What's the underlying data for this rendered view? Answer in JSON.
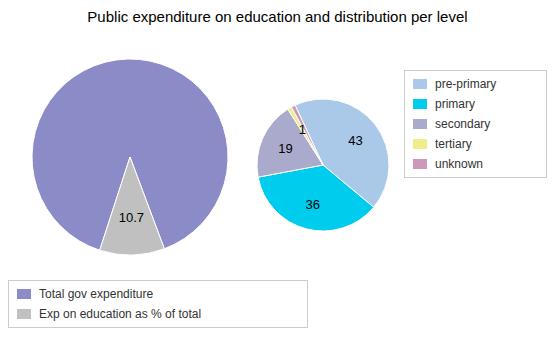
{
  "chart_data": [
    {
      "type": "pie",
      "title": "Public expenditure on education and distribution per level",
      "categories": [
        "Total gov expenditure",
        "Exp on education as % of total"
      ],
      "values": [
        89.3,
        10.7
      ],
      "value_labels": [
        null,
        "10.7"
      ],
      "colors": [
        "#8B8BC8",
        "#C0C0C0"
      ],
      "legend": "bottom"
    },
    {
      "type": "pie",
      "categories": [
        "pre-primary",
        "primary",
        "secondary",
        "tertiary",
        "unknown"
      ],
      "values": [
        43,
        36,
        19,
        1,
        1
      ],
      "value_labels": [
        "43",
        "36",
        "19",
        "1",
        null
      ],
      "colors": [
        "#AAC8E8",
        "#00CCEE",
        "#AAAACC",
        "#EEEE88",
        "#CC99BB"
      ],
      "legend": "right"
    }
  ]
}
